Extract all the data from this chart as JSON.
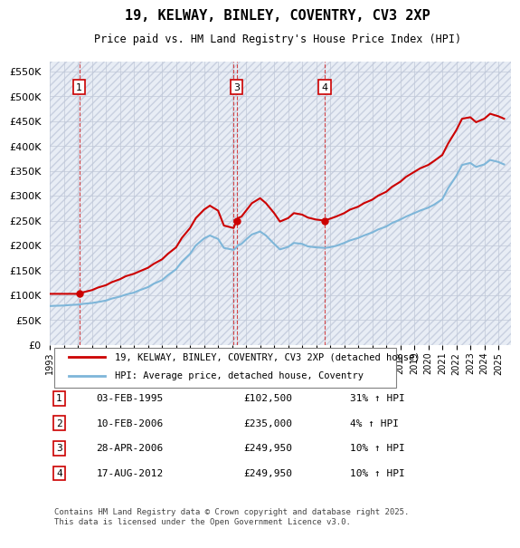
{
  "title": "19, KELWAY, BINLEY, COVENTRY, CV3 2XP",
  "subtitle": "Price paid vs. HM Land Registry's House Price Index (HPI)",
  "background_color": "#FFFFFF",
  "plot_bg_color": "#EEF3FB",
  "hatch_color": "#D0D8E8",
  "grid_color": "#C0C8D8",
  "ylabel_format": "£{:,.0f}K",
  "ylim": [
    0,
    570000
  ],
  "yticks": [
    0,
    50000,
    100000,
    150000,
    200000,
    250000,
    300000,
    350000,
    400000,
    450000,
    500000,
    550000
  ],
  "ytick_labels": [
    "£0",
    "£50K",
    "£100K",
    "£150K",
    "£200K",
    "£250K",
    "£300K",
    "£350K",
    "£400K",
    "£450K",
    "£500K",
    "£550K"
  ],
  "xmin": "1993-01-01",
  "xmax": "2025-12-01",
  "legend_items": [
    {
      "label": "19, KELWAY, BINLEY, COVENTRY, CV3 2XP (detached house)",
      "color": "#CC0000",
      "lw": 1.5
    },
    {
      "label": "HPI: Average price, detached house, Coventry",
      "color": "#7EB6D9",
      "lw": 1.5
    }
  ],
  "transactions": [
    {
      "num": 1,
      "date": "1995-02-03",
      "price": 102500,
      "pct": "31%",
      "dir": "↑"
    },
    {
      "num": 2,
      "date": "2006-02-10",
      "price": 235000,
      "pct": "4%",
      "dir": "↑"
    },
    {
      "num": 3,
      "date": "2006-04-28",
      "price": 249950,
      "pct": "10%",
      "dir": "↑"
    },
    {
      "num": 4,
      "date": "2012-08-17",
      "price": 249950,
      "pct": "10%",
      "dir": "↑"
    }
  ],
  "table_rows": [
    {
      "num": 1,
      "date_str": "03-FEB-1995",
      "price_str": "£102,500",
      "hpi_str": "31% ↑ HPI"
    },
    {
      "num": 2,
      "date_str": "10-FEB-2006",
      "price_str": "£235,000",
      "hpi_str": "4% ↑ HPI"
    },
    {
      "num": 3,
      "date_str": "28-APR-2006",
      "price_str": "£249,950",
      "hpi_str": "10% ↑ HPI"
    },
    {
      "num": 4,
      "date_str": "17-AUG-2012",
      "price_str": "£249,950",
      "hpi_str": "10% ↑ HPI"
    }
  ],
  "footer": "Contains HM Land Registry data © Crown copyright and database right 2025.\nThis data is licensed under the Open Government Licence v3.0.",
  "red_line_data": {
    "dates": [
      "1993-01-01",
      "1993-06-01",
      "1994-01-01",
      "1994-06-01",
      "1995-02-03",
      "1995-06-01",
      "1996-01-01",
      "1996-06-01",
      "1997-01-01",
      "1997-06-01",
      "1998-01-01",
      "1998-06-01",
      "1999-01-01",
      "1999-06-01",
      "2000-01-01",
      "2000-06-01",
      "2001-01-01",
      "2001-06-01",
      "2002-01-01",
      "2002-06-01",
      "2003-01-01",
      "2003-06-01",
      "2004-01-01",
      "2004-06-01",
      "2005-01-01",
      "2005-06-01",
      "2006-02-10",
      "2006-04-28",
      "2006-06-01",
      "2006-09-01",
      "2007-01-01",
      "2007-06-01",
      "2008-01-01",
      "2008-06-01",
      "2009-01-01",
      "2009-06-01",
      "2010-01-01",
      "2010-06-01",
      "2011-01-01",
      "2011-06-01",
      "2012-01-01",
      "2012-08-17",
      "2012-12-01",
      "2013-06-01",
      "2014-01-01",
      "2014-06-01",
      "2015-01-01",
      "2015-06-01",
      "2016-01-01",
      "2016-06-01",
      "2017-01-01",
      "2017-06-01",
      "2018-01-01",
      "2018-06-01",
      "2019-01-01",
      "2019-06-01",
      "2020-01-01",
      "2020-06-01",
      "2021-01-01",
      "2021-06-01",
      "2022-01-01",
      "2022-06-01",
      "2023-01-01",
      "2023-06-01",
      "2024-01-01",
      "2024-06-01",
      "2025-01-01",
      "2025-06-01"
    ],
    "values": [
      102500,
      102500,
      102500,
      102500,
      102500,
      106000,
      110000,
      115000,
      120000,
      126000,
      132000,
      138000,
      143000,
      148000,
      155000,
      163000,
      172000,
      183000,
      196000,
      215000,
      235000,
      255000,
      272000,
      280000,
      270000,
      240000,
      235000,
      249950,
      255000,
      258000,
      270000,
      285000,
      295000,
      285000,
      265000,
      248000,
      255000,
      265000,
      262000,
      256000,
      252000,
      249950,
      253000,
      258000,
      265000,
      272000,
      278000,
      285000,
      292000,
      300000,
      308000,
      318000,
      328000,
      338000,
      348000,
      355000,
      362000,
      370000,
      382000,
      405000,
      432000,
      455000,
      458000,
      448000,
      455000,
      465000,
      460000,
      455000
    ]
  },
  "blue_line_data": {
    "dates": [
      "1993-01-01",
      "1993-06-01",
      "1994-01-01",
      "1994-06-01",
      "1995-02-03",
      "1995-06-01",
      "1996-01-01",
      "1996-06-01",
      "1997-01-01",
      "1997-06-01",
      "1998-01-01",
      "1998-06-01",
      "1999-01-01",
      "1999-06-01",
      "2000-01-01",
      "2000-06-01",
      "2001-01-01",
      "2001-06-01",
      "2002-01-01",
      "2002-06-01",
      "2003-01-01",
      "2003-06-01",
      "2004-01-01",
      "2004-06-01",
      "2005-01-01",
      "2005-06-01",
      "2006-02-10",
      "2006-04-28",
      "2006-06-01",
      "2006-09-01",
      "2007-01-01",
      "2007-06-01",
      "2008-01-01",
      "2008-06-01",
      "2009-01-01",
      "2009-06-01",
      "2010-01-01",
      "2010-06-01",
      "2011-01-01",
      "2011-06-01",
      "2012-01-01",
      "2012-08-17",
      "2012-12-01",
      "2013-06-01",
      "2014-01-01",
      "2014-06-01",
      "2015-01-01",
      "2015-06-01",
      "2016-01-01",
      "2016-06-01",
      "2017-01-01",
      "2017-06-01",
      "2018-01-01",
      "2018-06-01",
      "2019-01-01",
      "2019-06-01",
      "2020-01-01",
      "2020-06-01",
      "2021-01-01",
      "2021-06-01",
      "2022-01-01",
      "2022-06-01",
      "2023-01-01",
      "2023-06-01",
      "2024-01-01",
      "2024-06-01",
      "2025-01-01",
      "2025-06-01"
    ],
    "values": [
      78000,
      78500,
      79000,
      80000,
      81000,
      82500,
      84000,
      86000,
      89000,
      93000,
      97000,
      101000,
      105000,
      110000,
      116000,
      123000,
      130000,
      140000,
      152000,
      167000,
      183000,
      200000,
      214000,
      220000,
      213000,
      195000,
      191000,
      196000,
      200000,
      203000,
      212000,
      222000,
      228000,
      220000,
      203000,
      192000,
      197000,
      205000,
      203000,
      198000,
      196000,
      195000,
      196000,
      199000,
      205000,
      210000,
      215000,
      220000,
      226000,
      232000,
      238000,
      245000,
      252000,
      258000,
      265000,
      270000,
      276000,
      282000,
      293000,
      315000,
      340000,
      362000,
      366000,
      358000,
      363000,
      372000,
      368000,
      363000
    ]
  }
}
